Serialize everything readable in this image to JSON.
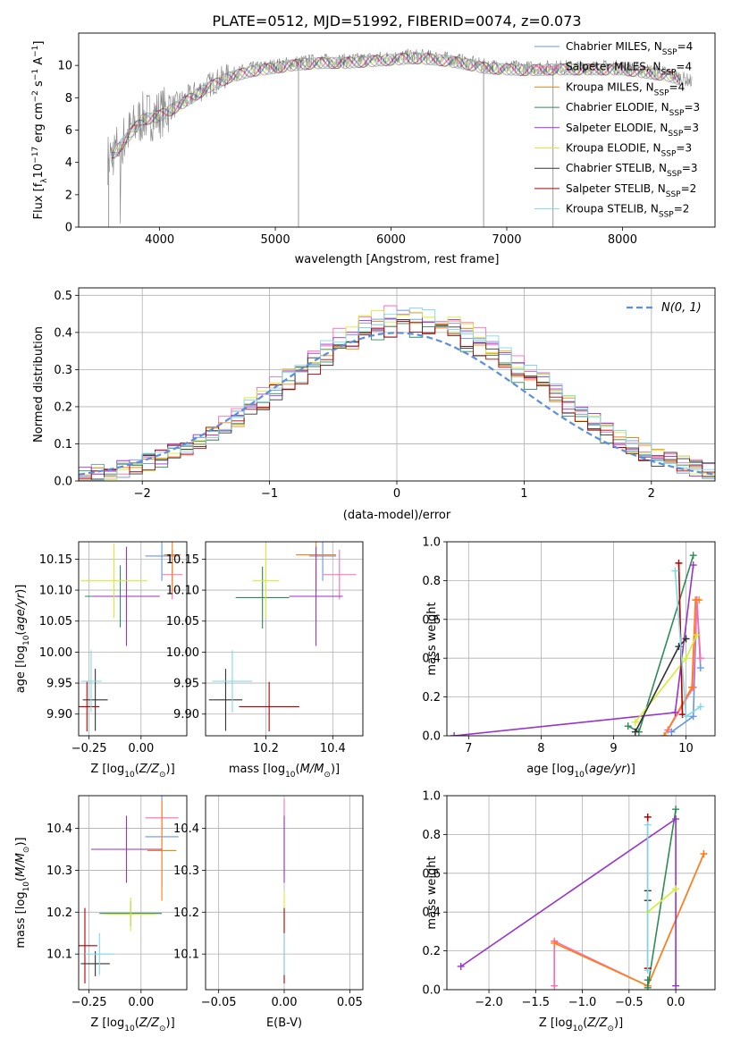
{
  "figure": {
    "title": "PLATE=0512, MJD=51992, FIBERID=0074, z=0.073"
  },
  "model_legend": [
    {
      "label": "Chabrier MILES, N_SSP=4",
      "color": "#6495ed"
    },
    {
      "label": "Salpeter MILES, N_SSP=4",
      "color": "#ff69b4"
    },
    {
      "label": "Kroupa MILES, N_SSP=4",
      "color": "#ff7f0e"
    },
    {
      "label": "Chabrier ELODIE, N_SSP=3",
      "color": "#2e8b57"
    },
    {
      "label": "Salpeter ELODIE, N_SSP=3",
      "color": "#9932cc"
    },
    {
      "label": "Kroupa ELODIE, N_SSP=3",
      "color": "#d4ed31"
    },
    {
      "label": "Chabrier STELIB, N_SSP=3",
      "color": "#333333"
    },
    {
      "label": "Salpeter STELIB, N_SSP=2",
      "color": "#b30000"
    },
    {
      "label": "Kroupa STELIB, N_SSP=2",
      "color": "#7fd8e8"
    }
  ],
  "chart_data": [
    {
      "id": "spectrum",
      "type": "line",
      "xlabel": "wavelength [Angstrom, rest frame]",
      "ylabel": "Flux [f_λ 10^-17 erg cm^-2 s^-1 A^-1]",
      "xlim": [
        3300,
        8800
      ],
      "ylim": [
        0,
        12
      ],
      "xticks": [
        4000,
        5000,
        6000,
        7000,
        8000
      ],
      "yticks": [
        0,
        2,
        4,
        6,
        8,
        10
      ],
      "grid": false,
      "legend": "right",
      "continuum_x": [
        3550,
        3700,
        3850,
        3950,
        4050,
        4200,
        4400,
        4600,
        4800,
        5000,
        5200,
        5400,
        5600,
        5800,
        6000,
        6200,
        6400,
        6600,
        6800,
        7000,
        7200,
        7400,
        7600,
        7800,
        8000,
        8200,
        8400,
        8600
      ],
      "continuum_y": [
        4.2,
        5.5,
        6.8,
        6.9,
        7.2,
        7.8,
        8.7,
        9.4,
        9.8,
        10.0,
        10.2,
        10.3,
        10.3,
        10.4,
        10.5,
        10.6,
        10.5,
        10.3,
        10.0,
        9.9,
        9.85,
        9.9,
        9.9,
        9.9,
        9.9,
        9.7,
        9.5,
        9.0
      ]
    },
    {
      "id": "residuals",
      "type": "line",
      "xlabel": "(data-model)/error",
      "ylabel": "Normed distribution",
      "xlim": [
        -2.5,
        2.5
      ],
      "ylim": [
        0,
        0.52
      ],
      "xticks": [
        -2,
        -1,
        0,
        1,
        2
      ],
      "yticks": [
        0.0,
        0.1,
        0.2,
        0.3,
        0.4,
        0.5
      ],
      "grid": true,
      "legend": "top-right",
      "reference_curve": {
        "label": "N(0, 1)",
        "color": "#5b8de0"
      }
    },
    {
      "id": "age-vs-Z",
      "type": "scatter",
      "xlabel": "Z [log10(Z/Z☉)]",
      "ylabel": "age [log10(age/yr)]",
      "xlim": [
        -0.3,
        0.22
      ],
      "ylim": [
        9.865,
        10.178
      ],
      "xticks": [
        -0.25,
        0.0
      ],
      "yticks": [
        9.9,
        9.95,
        10.0,
        10.05,
        10.1,
        10.15
      ],
      "grid": true,
      "points": [
        {
          "x": 0.1,
          "y": 10.155,
          "xerr": 0.08,
          "yerr": 0.04,
          "color": "#6495ed"
        },
        {
          "x": 0.15,
          "y": 10.125,
          "xerr": 0.05,
          "yerr": 0.04,
          "color": "#ff69b4"
        },
        {
          "x": 0.15,
          "y": 10.157,
          "xerr": 0.04,
          "yerr": 0.06,
          "color": "#ff7f0e"
        },
        {
          "x": -0.1,
          "y": 10.09,
          "xerr": 0.17,
          "yerr": 0.05,
          "color": "#2e8b57"
        },
        {
          "x": -0.07,
          "y": 10.09,
          "xerr": 0.16,
          "yerr": 0.08,
          "color": "#9932cc"
        },
        {
          "x": -0.13,
          "y": 10.115,
          "xerr": 0.16,
          "yerr": 0.06,
          "color": "#d4ed31"
        },
        {
          "x": -0.22,
          "y": 9.923,
          "xerr": 0.06,
          "yerr": 0.05,
          "color": "#333333"
        },
        {
          "x": -0.26,
          "y": 9.912,
          "xerr": 0.06,
          "yerr": 0.04,
          "color": "#b30000"
        },
        {
          "x": -0.24,
          "y": 9.953,
          "xerr": 0.05,
          "yerr": 0.05,
          "color": "#7fd8e8"
        }
      ]
    },
    {
      "id": "age-vs-mass",
      "type": "scatter",
      "xlabel": "mass [log10(M/M☉)]",
      "ylabel": "",
      "xlim": [
        10.02,
        10.49
      ],
      "ylim": [
        9.865,
        10.178
      ],
      "xticks": [
        10.2,
        10.4
      ],
      "yticks": [
        9.9,
        9.95,
        10.0,
        10.05,
        10.1,
        10.15
      ],
      "grid": true,
      "points": [
        {
          "x": 10.37,
          "y": 10.155,
          "xerr": 0.04,
          "yerr": 0.04,
          "color": "#6495ed"
        },
        {
          "x": 10.42,
          "y": 10.125,
          "xerr": 0.05,
          "yerr": 0.04,
          "color": "#ff69b4"
        },
        {
          "x": 10.35,
          "y": 10.157,
          "xerr": 0.06,
          "yerr": 0.06,
          "color": "#ff7f0e"
        },
        {
          "x": 10.19,
          "y": 10.088,
          "xerr": 0.08,
          "yerr": 0.05,
          "color": "#2e8b57"
        },
        {
          "x": 10.35,
          "y": 10.09,
          "xerr": 0.08,
          "yerr": 0.08,
          "color": "#9932cc"
        },
        {
          "x": 10.2,
          "y": 10.115,
          "xerr": 0.04,
          "yerr": 0.06,
          "color": "#d4ed31"
        },
        {
          "x": 10.08,
          "y": 9.923,
          "xerr": 0.05,
          "yerr": 0.05,
          "color": "#333333"
        },
        {
          "x": 10.21,
          "y": 9.912,
          "xerr": 0.09,
          "yerr": 0.04,
          "color": "#b30000"
        },
        {
          "x": 10.1,
          "y": 9.953,
          "xerr": 0.06,
          "yerr": 0.05,
          "color": "#7fd8e8"
        }
      ]
    },
    {
      "id": "weight-vs-age",
      "type": "line",
      "xlabel": "age [log10(age/yr)]",
      "ylabel": "mass weight",
      "xlim": [
        6.7,
        10.4
      ],
      "ylim": [
        0.0,
        1.0
      ],
      "xticks": [
        7,
        8,
        9,
        10
      ],
      "yticks": [
        0.0,
        0.2,
        0.4,
        0.6,
        0.8,
        1.0
      ],
      "grid": true,
      "series": [
        {
          "color": "#6495ed",
          "x": [
            9.8,
            10.1,
            10.15,
            10.2
          ],
          "y": [
            0.02,
            0.1,
            0.7,
            0.35
          ]
        },
        {
          "color": "#ff69b4",
          "x": [
            9.75,
            10.1,
            10.15,
            10.2
          ],
          "y": [
            0.03,
            0.25,
            0.7,
            0.4
          ]
        },
        {
          "color": "#ff7f0e",
          "x": [
            9.7,
            10.08,
            10.13,
            10.18
          ],
          "y": [
            0.0,
            0.25,
            0.7,
            0.7
          ]
        },
        {
          "color": "#2e8b57",
          "x": [
            9.2,
            9.35,
            10.1
          ],
          "y": [
            0.05,
            0.02,
            0.93
          ]
        },
        {
          "color": "#9932cc",
          "x": [
            6.8,
            9.85,
            10.1
          ],
          "y": [
            0.0,
            0.12,
            0.88
          ]
        },
        {
          "color": "#d4ed31",
          "x": [
            9.3,
            10.0,
            10.15
          ],
          "y": [
            0.07,
            0.4,
            0.52
          ]
        },
        {
          "color": "#333333",
          "x": [
            9.3,
            9.9,
            10.0
          ],
          "y": [
            0.02,
            0.46,
            0.5
          ]
        },
        {
          "color": "#b30000",
          "x": [
            9.9,
            9.95
          ],
          "y": [
            0.89,
            0.11
          ]
        },
        {
          "color": "#7fd8e8",
          "x": [
            9.85,
            10.0,
            10.2
          ],
          "y": [
            0.85,
            0.1,
            0.15
          ]
        }
      ]
    },
    {
      "id": "mass-vs-Z",
      "type": "scatter",
      "xlabel": "Z [log10(Z/Z☉)]",
      "ylabel": "mass [log10(M/M☉)]",
      "xlim": [
        -0.3,
        0.22
      ],
      "ylim": [
        10.015,
        10.478
      ],
      "xticks": [
        -0.25,
        0.0
      ],
      "yticks": [
        10.1,
        10.2,
        10.3,
        10.4
      ],
      "grid": true,
      "points": [
        {
          "x": 0.1,
          "y": 10.38,
          "xerr": 0.08,
          "yerr": 0.12,
          "color": "#6495ed"
        },
        {
          "x": 0.1,
          "y": 10.425,
          "xerr": 0.08,
          "yerr": 0.03,
          "color": "#ff69b4"
        },
        {
          "x": 0.1,
          "y": 10.347,
          "xerr": 0.07,
          "yerr": 0.12,
          "color": "#ff7f0e"
        },
        {
          "x": -0.05,
          "y": 10.197,
          "xerr": 0.15,
          "yerr": 0.03,
          "color": "#2e8b57"
        },
        {
          "x": -0.07,
          "y": 10.35,
          "xerr": 0.17,
          "yerr": 0.08,
          "color": "#9932cc"
        },
        {
          "x": -0.05,
          "y": 10.195,
          "xerr": 0.12,
          "yerr": 0.04,
          "color": "#d4ed31"
        },
        {
          "x": -0.22,
          "y": 10.077,
          "xerr": 0.07,
          "yerr": 0.03,
          "color": "#333333"
        },
        {
          "x": -0.27,
          "y": 10.12,
          "xerr": 0.06,
          "yerr": 0.09,
          "color": "#b30000"
        },
        {
          "x": -0.2,
          "y": 10.1,
          "xerr": 0.07,
          "yerr": 0.05,
          "color": "#7fd8e8"
        }
      ]
    },
    {
      "id": "mass-vs-EBV",
      "type": "scatter",
      "xlabel": "E(B-V)",
      "ylabel": "",
      "xlim": [
        -0.06,
        0.06
      ],
      "ylim": [
        10.015,
        10.478
      ],
      "xticks": [
        -0.05,
        0.0,
        0.05
      ],
      "yticks": [
        10.1,
        10.2,
        10.3,
        10.4
      ],
      "grid": true,
      "points": [
        {
          "x": 0.0,
          "y": 10.38,
          "yerr": 0.09,
          "color": "#ff69b4"
        },
        {
          "x": 0.0,
          "y": 10.35,
          "yerr": 0.08,
          "color": "#9932cc"
        },
        {
          "x": 0.0,
          "y": 10.2,
          "yerr": 0.05,
          "color": "#d4ed31"
        },
        {
          "x": 0.0,
          "y": 10.12,
          "yerr": 0.09,
          "color": "#b30000"
        },
        {
          "x": 0.0,
          "y": 10.1,
          "yerr": 0.05,
          "color": "#7fd8e8"
        }
      ]
    },
    {
      "id": "weight-vs-Z",
      "type": "line",
      "xlabel": "Z [log10(Z/Z☉)]",
      "ylabel": "mass weight",
      "xlim": [
        -2.45,
        0.42
      ],
      "ylim": [
        0.0,
        1.0
      ],
      "xticks": [
        -2.0,
        -1.5,
        -1.0,
        -0.5,
        0.0
      ],
      "yticks": [
        0.0,
        0.2,
        0.4,
        0.6,
        0.8,
        1.0
      ],
      "grid": true,
      "series": [
        {
          "color": "#ff69b4",
          "x": [
            -1.3,
            -1.3,
            -0.3,
            0.3
          ],
          "y": [
            0.02,
            0.25,
            0.02,
            0.7
          ]
        },
        {
          "color": "#ff7f0e",
          "x": [
            -1.3,
            -0.3,
            0.3
          ],
          "y": [
            0.24,
            0.02,
            0.7
          ]
        },
        {
          "color": "#2e8b57",
          "x": [
            -0.3,
            -0.3,
            0.0
          ],
          "y": [
            0.05,
            0.01,
            0.93
          ]
        },
        {
          "color": "#9932cc",
          "x": [
            -2.3,
            0.0,
            0.0
          ],
          "y": [
            0.12,
            0.88,
            0.02
          ]
        },
        {
          "color": "#d4ed31",
          "x": [
            -0.3,
            0.0
          ],
          "y": [
            0.4,
            0.52
          ]
        },
        {
          "color": "#333333",
          "x": [
            -0.3,
            -0.3
          ],
          "y": [
            0.51,
            0.46
          ]
        },
        {
          "color": "#b30000",
          "x": [
            -0.3,
            -0.3
          ],
          "y": [
            0.89,
            0.11
          ]
        },
        {
          "color": "#7fd8e8",
          "x": [
            -0.3,
            -0.3
          ],
          "y": [
            0.85,
            0.1
          ]
        }
      ]
    }
  ]
}
